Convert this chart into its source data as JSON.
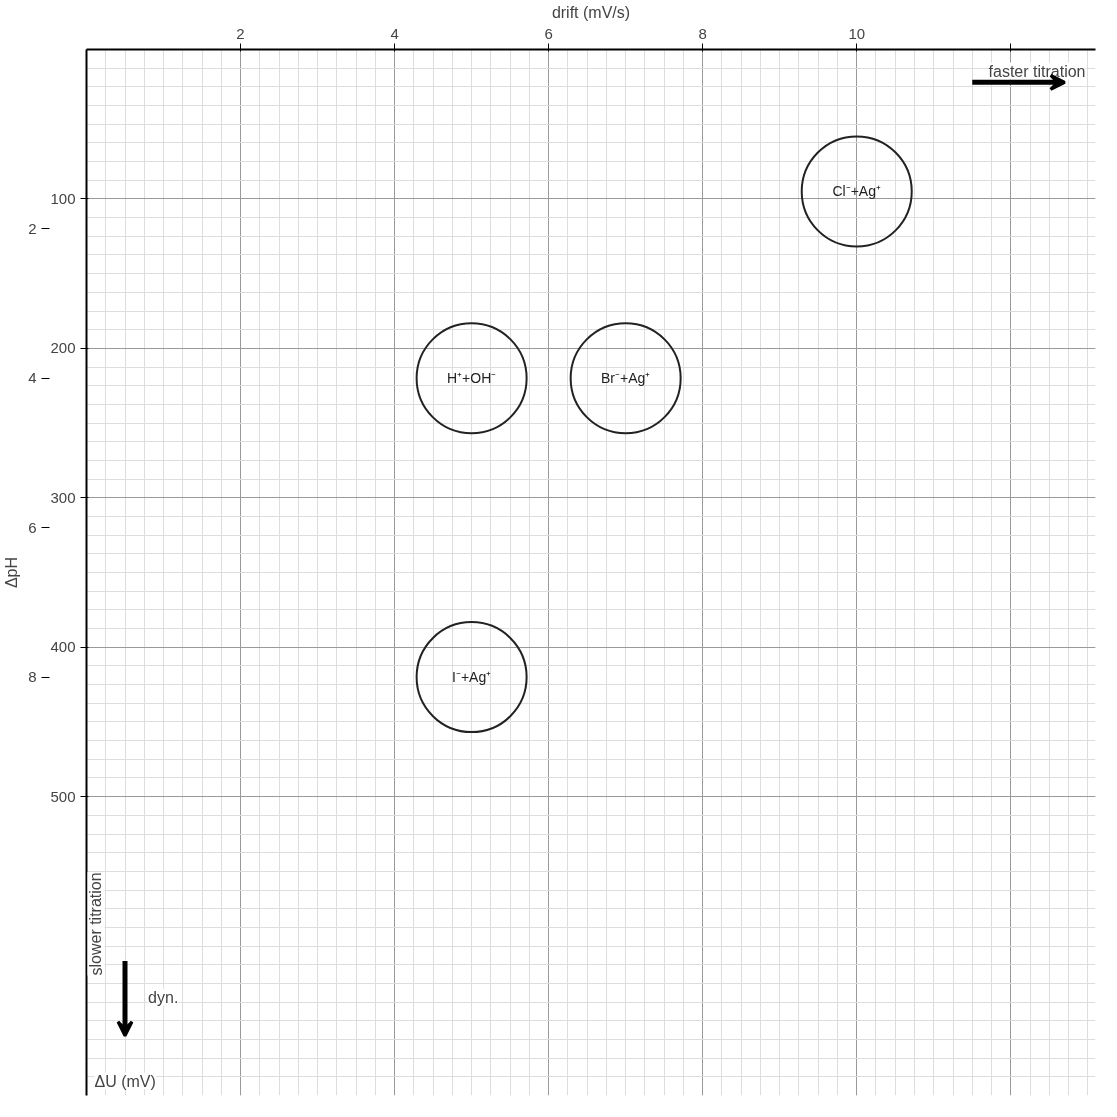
{
  "chart_data": {
    "type": "bubble",
    "xlabel": "drift (mV/s)",
    "ylabel": "ΔU (mV)",
    "y2label": "ΔpH",
    "x": [
      10,
      5,
      7,
      5
    ],
    "values": [
      95,
      220,
      220,
      420
    ],
    "sizes": [
      1,
      1,
      1,
      1
    ],
    "color": "#222222",
    "xlim": [
      0,
      13.1
    ],
    "xticks": [
      2,
      4,
      6,
      8,
      10,
      {
        "value": 12,
        "label": null
      }
    ],
    "ylim": [
      700,
      0
    ],
    "yticks": [
      100,
      200,
      300,
      400,
      500
    ],
    "y2lim": [
      13.6,
      -0.4
    ],
    "y2ticks": [
      2,
      4,
      6,
      8
    ],
    "grid": true,
    "legend": false,
    "annotations": [
      {
        "text": "Cl⁻+Ag⁺",
        "x": 10,
        "y": 95
      },
      {
        "text": "H⁺+OH⁻",
        "x": 5,
        "y": 220
      },
      {
        "text": "Br⁻+Ag⁺",
        "x": 7,
        "y": 220
      },
      {
        "text": "I⁻+Ag⁺",
        "x": 5,
        "y": 420
      },
      "faster titration",
      "slower titration",
      "dyn."
    ]
  }
}
